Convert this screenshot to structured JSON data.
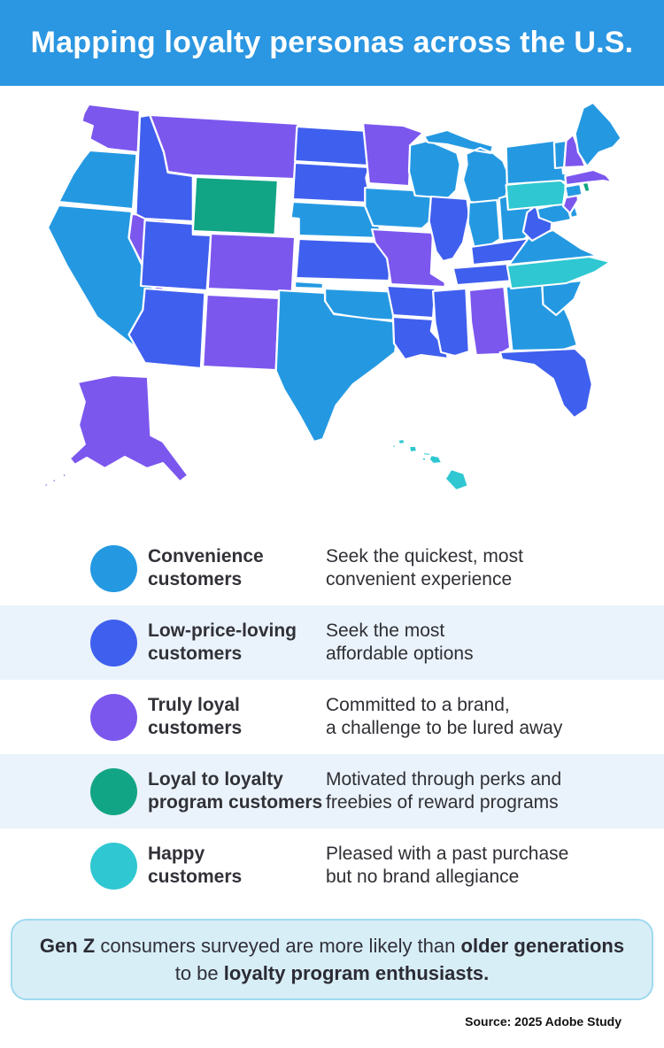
{
  "header": {
    "title": "Mapping loyalty personas across the U.S.",
    "bg_color": "#2B96E1"
  },
  "map": {
    "persona_colors": {
      "convenience": "#2499E2",
      "low_price": "#3F5FEE",
      "truly_loyal": "#7B57EE",
      "loyalty_program": "#12A585",
      "happy": "#2FC7D1"
    },
    "states": [
      {
        "id": "WA",
        "persona": "truly_loyal"
      },
      {
        "id": "OR",
        "persona": "convenience"
      },
      {
        "id": "CA",
        "persona": "convenience"
      },
      {
        "id": "NV",
        "persona": "truly_loyal"
      },
      {
        "id": "ID",
        "persona": "low_price"
      },
      {
        "id": "MT",
        "persona": "truly_loyal"
      },
      {
        "id": "WY",
        "persona": "loyalty_program"
      },
      {
        "id": "UT",
        "persona": "low_price"
      },
      {
        "id": "CO",
        "persona": "truly_loyal"
      },
      {
        "id": "AZ",
        "persona": "low_price"
      },
      {
        "id": "NM",
        "persona": "truly_loyal"
      },
      {
        "id": "ND",
        "persona": "low_price"
      },
      {
        "id": "SD",
        "persona": "low_price"
      },
      {
        "id": "NE",
        "persona": "convenience"
      },
      {
        "id": "KS",
        "persona": "low_price"
      },
      {
        "id": "OK",
        "persona": "convenience"
      },
      {
        "id": "TX",
        "persona": "convenience"
      },
      {
        "id": "MN",
        "persona": "truly_loyal"
      },
      {
        "id": "IA",
        "persona": "convenience"
      },
      {
        "id": "MO",
        "persona": "truly_loyal"
      },
      {
        "id": "AR",
        "persona": "low_price"
      },
      {
        "id": "LA",
        "persona": "low_price"
      },
      {
        "id": "WI",
        "persona": "convenience"
      },
      {
        "id": "IL",
        "persona": "low_price"
      },
      {
        "id": "MI",
        "persona": "convenience"
      },
      {
        "id": "IN",
        "persona": "convenience"
      },
      {
        "id": "OH",
        "persona": "convenience"
      },
      {
        "id": "KY",
        "persona": "low_price"
      },
      {
        "id": "TN",
        "persona": "low_price"
      },
      {
        "id": "MS",
        "persona": "low_price"
      },
      {
        "id": "AL",
        "persona": "truly_loyal"
      },
      {
        "id": "GA",
        "persona": "convenience"
      },
      {
        "id": "FL",
        "persona": "low_price"
      },
      {
        "id": "SC",
        "persona": "convenience"
      },
      {
        "id": "NC",
        "persona": "happy"
      },
      {
        "id": "VA",
        "persona": "convenience"
      },
      {
        "id": "WV",
        "persona": "low_price"
      },
      {
        "id": "MD",
        "persona": "convenience"
      },
      {
        "id": "DE",
        "persona": "convenience"
      },
      {
        "id": "PA",
        "persona": "happy"
      },
      {
        "id": "NJ",
        "persona": "truly_loyal"
      },
      {
        "id": "NY",
        "persona": "convenience"
      },
      {
        "id": "CT",
        "persona": "convenience"
      },
      {
        "id": "RI",
        "persona": "loyalty_program"
      },
      {
        "id": "MA",
        "persona": "truly_loyal"
      },
      {
        "id": "VT",
        "persona": "convenience"
      },
      {
        "id": "NH",
        "persona": "truly_loyal"
      },
      {
        "id": "ME",
        "persona": "convenience"
      },
      {
        "id": "AK",
        "persona": "truly_loyal"
      },
      {
        "id": "HI",
        "persona": "happy"
      }
    ]
  },
  "legend": {
    "stripe_color": "#EAF3FB",
    "items": [
      {
        "persona": "convenience",
        "color": "#2499E2",
        "label_lines": [
          "Convenience",
          "customers"
        ],
        "desc_lines": [
          "Seek the quickest, most",
          "convenient experience"
        ]
      },
      {
        "persona": "low_price",
        "color": "#3F5FEE",
        "label_lines": [
          "Low-price-loving",
          "customers"
        ],
        "desc_lines": [
          "Seek the most",
          "affordable options"
        ]
      },
      {
        "persona": "truly_loyal",
        "color": "#7B57EE",
        "label_lines": [
          "Truly loyal",
          "customers"
        ],
        "desc_lines": [
          "Committed to a brand,",
          "a challenge to be lured away"
        ]
      },
      {
        "persona": "loyalty_program",
        "color": "#12A585",
        "label_lines": [
          "Loyal to loyalty",
          "program customers"
        ],
        "desc_lines": [
          "Motivated through perks and",
          "freebies of reward programs"
        ]
      },
      {
        "persona": "happy",
        "color": "#2FC7D1",
        "label_lines": [
          "Happy",
          "customers"
        ],
        "desc_lines": [
          "Pleased with a past purchase",
          "but no brand allegiance"
        ]
      }
    ]
  },
  "callout": {
    "bg_color": "#D8EEF7",
    "border_color": "#9FD9EF",
    "lines": [
      [
        {
          "text": "Gen Z",
          "bold": true
        },
        {
          "text": " consumers surveyed are more likely than ",
          "bold": false
        },
        {
          "text": "older generations",
          "bold": true
        }
      ],
      [
        {
          "text": "to be ",
          "bold": false
        },
        {
          "text": "loyalty program enthusiasts.",
          "bold": true
        }
      ]
    ]
  },
  "source": {
    "text": "Source: 2025 Adobe Study"
  }
}
